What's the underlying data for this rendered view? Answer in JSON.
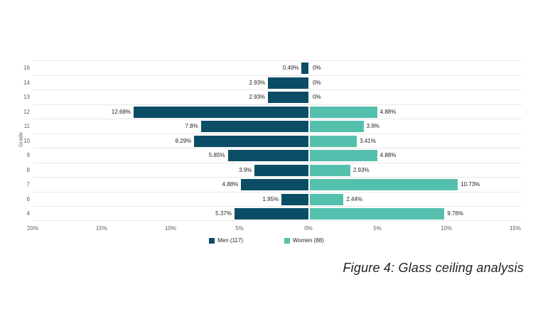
{
  "caption": "Figure 4: Glass ceiling analysis",
  "chart_data": {
    "type": "bar",
    "subtype": "tornado-diverging-horizontal",
    "title": "",
    "y_axis_title": "Grade",
    "xlabel": "",
    "ylabel": "Grade",
    "grid": "horizontal-only",
    "legend_position": "bottom-center",
    "categories": [
      "16",
      "14",
      "13",
      "12",
      "11",
      "10",
      "9",
      "8",
      "7",
      "6",
      "4"
    ],
    "series": [
      {
        "name": "Men (117)",
        "direction": "left",
        "color": "#0c4d66",
        "values": [
          0.49,
          2.93,
          2.93,
          12.68,
          7.8,
          8.29,
          5.85,
          3.9,
          4.88,
          1.95,
          5.37
        ],
        "labels": [
          "0.49%",
          "2.93%",
          "2.93%",
          "12.68%",
          "7.8%",
          "8.29%",
          "5.85%",
          "3.9%",
          "4.88%",
          "1.95%",
          "5.37%"
        ]
      },
      {
        "name": "Women (88)",
        "direction": "right",
        "color": "#55bfad",
        "values": [
          0,
          0,
          0,
          4.88,
          3.9,
          3.41,
          4.88,
          2.93,
          10.73,
          2.44,
          9.76
        ],
        "labels": [
          "0%",
          "0%",
          "0%",
          "4.88%",
          "3.9%",
          "3.41%",
          "4.88%",
          "2.93%",
          "10.73%",
          "2.44%",
          "9.76%"
        ]
      }
    ],
    "x_ticks": [
      {
        "label": "20%",
        "value": -20
      },
      {
        "label": "15%",
        "value": -15
      },
      {
        "label": "10%",
        "value": -10
      },
      {
        "label": "5%",
        "value": -5
      },
      {
        "label": "0%",
        "value": 0
      },
      {
        "label": "5%",
        "value": 5
      },
      {
        "label": "10%",
        "value": 10
      },
      {
        "label": "15%",
        "value": 15
      }
    ],
    "x_range_pct": [
      -20,
      15.5
    ],
    "legend": [
      {
        "label": "Men (117)",
        "color": "#0c4d66",
        "key": "men"
      },
      {
        "label": "Women (88)",
        "color": "#55bfad",
        "key": "women"
      }
    ],
    "colors": {
      "gridline": "#e8e8e8",
      "axis_text": "#605e5c",
      "data_label_text": "#252423"
    }
  }
}
